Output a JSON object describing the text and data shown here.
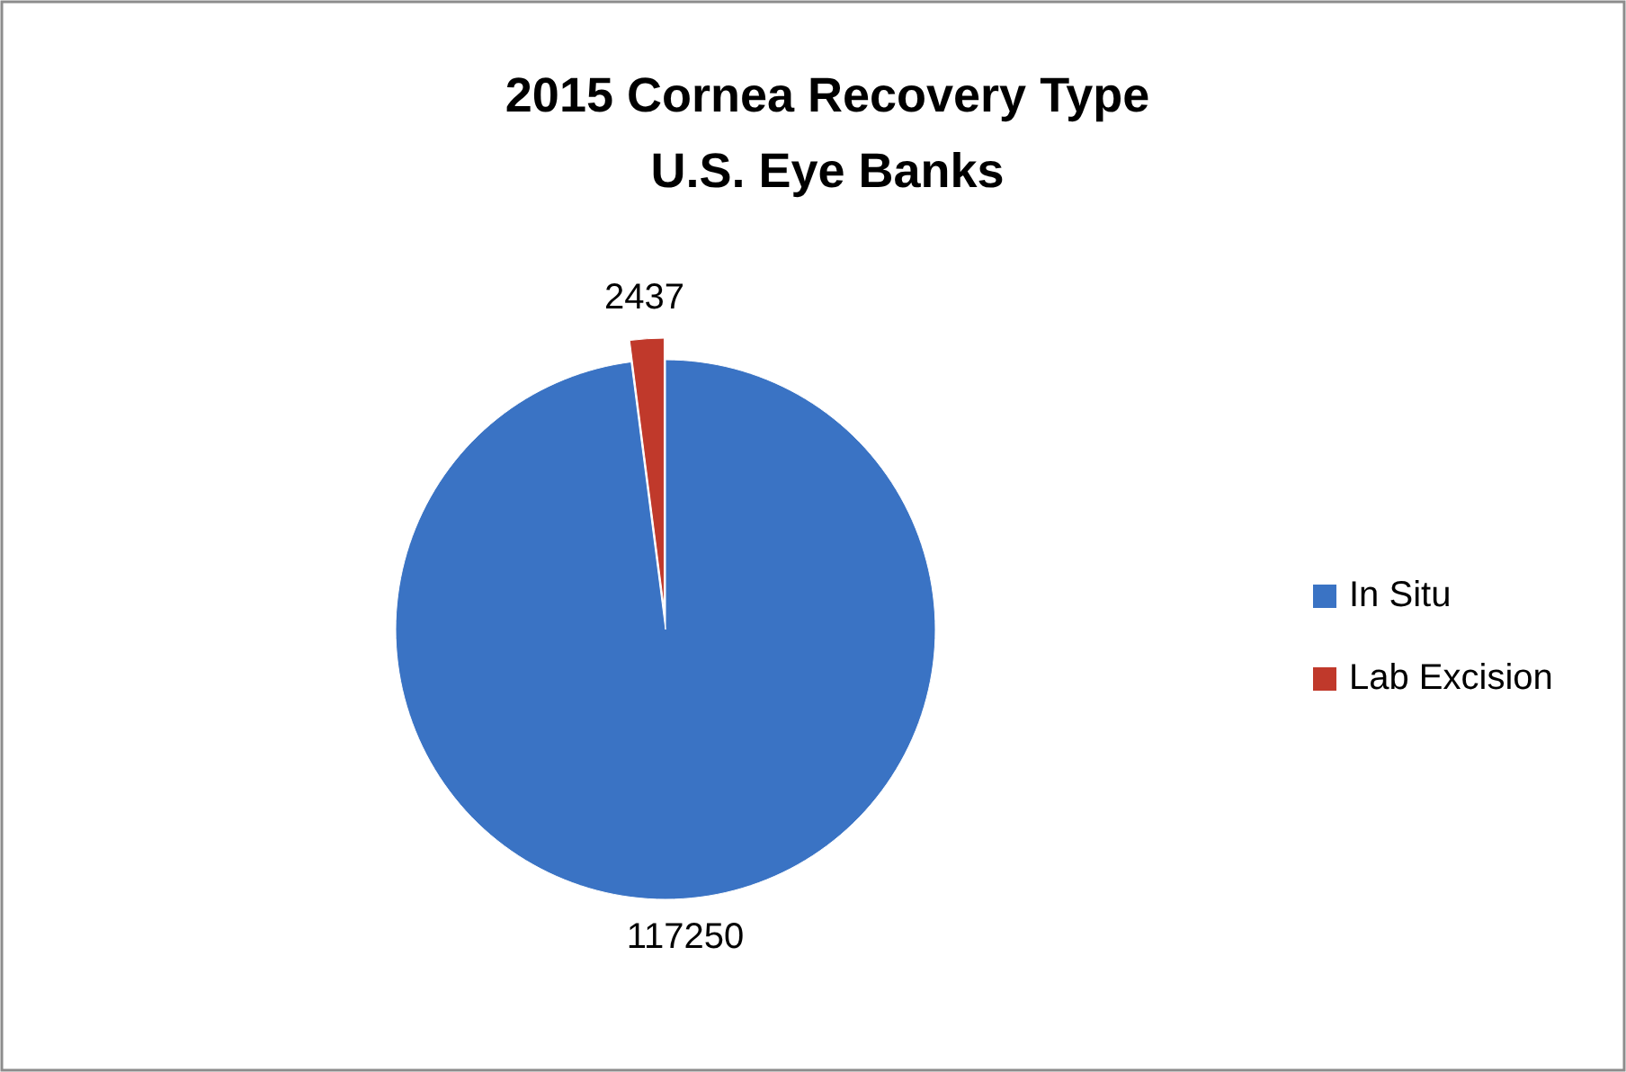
{
  "chart_data": {
    "type": "pie",
    "title": "2015 Cornea Recovery Type",
    "subtitle": "U.S. Eye Banks",
    "categories": [
      "In Situ",
      "Lab Excision"
    ],
    "values": [
      117250,
      2437
    ],
    "colors": [
      "#3a73c4",
      "#c0392b"
    ],
    "data_labels": true,
    "legend": "right"
  }
}
